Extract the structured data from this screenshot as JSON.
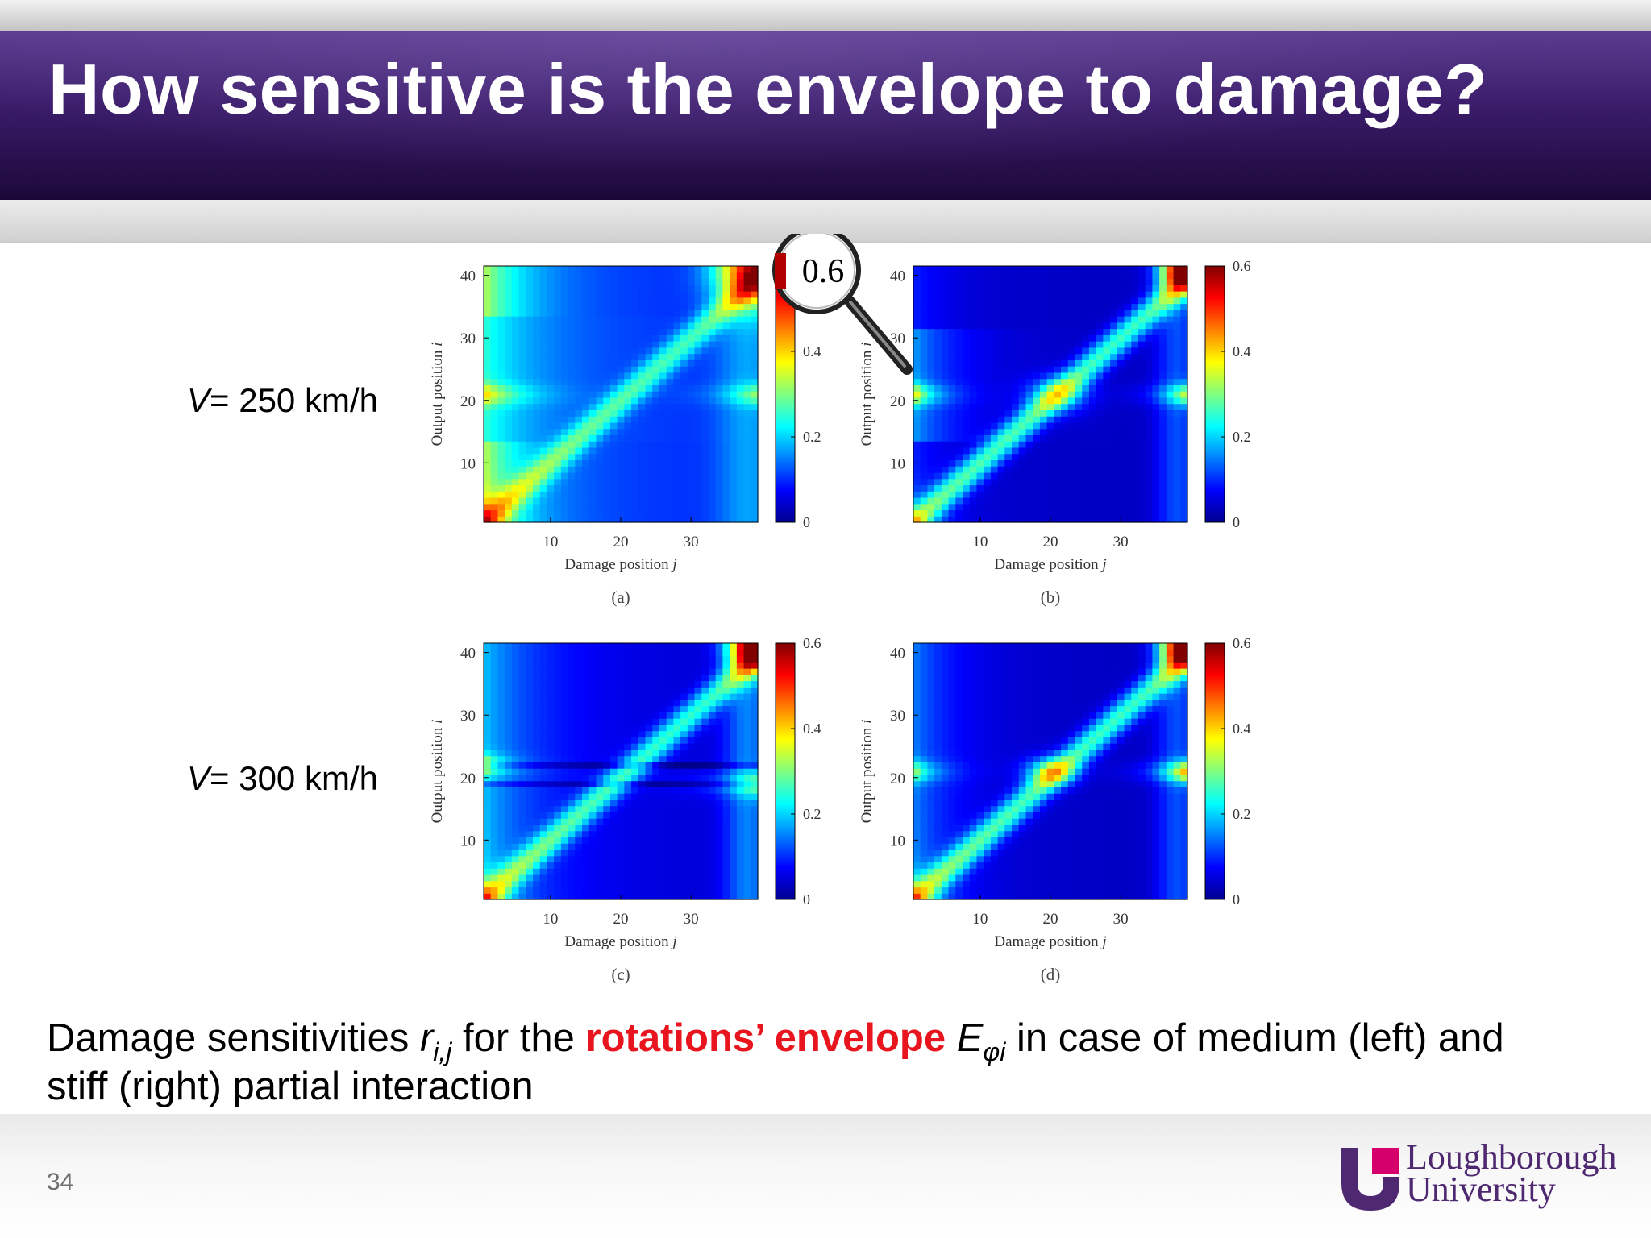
{
  "slide": {
    "title": "How sensitive is the envelope to damage?",
    "page_number": "34",
    "row_labels": [
      {
        "var": "V",
        "rest": "= 250 km/h"
      },
      {
        "var": "V",
        "rest": "= 300 km/h"
      }
    ],
    "caption": {
      "pre": "Damage sensitivities ",
      "r_var": "r",
      "r_sub": "i,j",
      "mid": " for the ",
      "highlight": "rotations’ envelope",
      "e_var": "E",
      "e_sub": "φi",
      "post1": " in case of medium (left) and",
      "post2": "stiff (right) partial interaction"
    },
    "logo": {
      "line1": "Loughborough",
      "line2": "University"
    },
    "magnifier_label": "0.6"
  },
  "chart_data": [
    {
      "type": "heatmap",
      "panel_label": "(a)",
      "xlabel": "Damage position",
      "xlabel_var": "j",
      "ylabel": "Output position",
      "ylabel_var": "i",
      "x_ticks": [
        "10",
        "20",
        "30"
      ],
      "y_ticks": [
        "10",
        "20",
        "30",
        "40"
      ],
      "colorbar_ticks": [
        "0",
        "0.2",
        "0.4",
        "0.6"
      ],
      "colorbar_range": [
        0,
        0.6
      ],
      "grid": [
        39,
        41
      ]
    },
    {
      "type": "heatmap",
      "panel_label": "(b)",
      "xlabel": "Damage position",
      "xlabel_var": "j",
      "ylabel": "Output position",
      "ylabel_var": "i",
      "x_ticks": [
        "10",
        "20",
        "30"
      ],
      "y_ticks": [
        "10",
        "20",
        "30",
        "40"
      ],
      "colorbar_ticks": [
        "0",
        "0.2",
        "0.4",
        "0.6"
      ],
      "colorbar_range": [
        0,
        0.6
      ],
      "grid": [
        39,
        41
      ]
    },
    {
      "type": "heatmap",
      "panel_label": "(c)",
      "xlabel": "Damage position",
      "xlabel_var": "j",
      "ylabel": "Output position",
      "ylabel_var": "i",
      "x_ticks": [
        "10",
        "20",
        "30"
      ],
      "y_ticks": [
        "10",
        "20",
        "30",
        "40"
      ],
      "colorbar_ticks": [
        "0",
        "0.2",
        "0.4",
        "0.6"
      ],
      "colorbar_range": [
        0,
        0.6
      ],
      "grid": [
        39,
        41
      ]
    },
    {
      "type": "heatmap",
      "panel_label": "(d)",
      "xlabel": "Damage position",
      "xlabel_var": "j",
      "ylabel": "Output position",
      "ylabel_var": "i",
      "x_ticks": [
        "10",
        "20",
        "30"
      ],
      "y_ticks": [
        "10",
        "20",
        "30",
        "40"
      ],
      "colorbar_ticks": [
        "0",
        "0.2",
        "0.4",
        "0.6"
      ],
      "colorbar_range": [
        0,
        0.6
      ],
      "grid": [
        39,
        41
      ]
    }
  ]
}
